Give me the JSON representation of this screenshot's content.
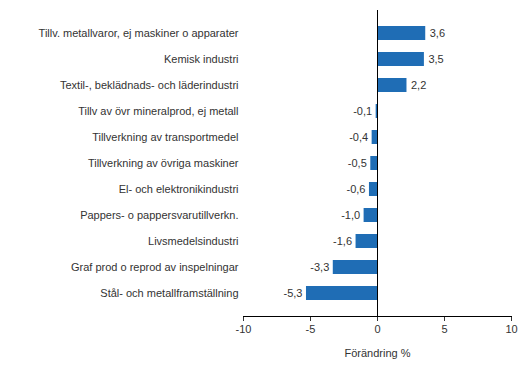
{
  "chart_data": {
    "type": "bar",
    "orientation": "horizontal",
    "categories": [
      "Tillv. metallvaror, ej maskiner o apparater",
      "Kemisk industri",
      "Textil-, beklädnads- och läderindustri",
      "Tillv av övr mineralprod, ej metall",
      "Tillverkning av transportmedel",
      "Tillverkning av övriga maskiner",
      "El- och elektronikindustri",
      "Pappers- o pappersvarutillverkn.",
      "Livsmedelsindustri",
      "Graf prod o reprod av inspelningar",
      "Stål- och metallframställning"
    ],
    "values": [
      3.6,
      3.5,
      2.2,
      -0.1,
      -0.4,
      -0.5,
      -0.6,
      -1.0,
      -1.6,
      -3.3,
      -5.3
    ],
    "value_labels": [
      "3,6",
      "3,5",
      "2,2",
      "-0,1",
      "-0,4",
      "-0,5",
      "-0,6",
      "-1,0",
      "-1,6",
      "-3,3",
      "-5,3"
    ],
    "data_labels": true,
    "color": "#1f6db5",
    "xlabel": "Förändring %",
    "xlim": [
      -10,
      10
    ],
    "xticks": [
      -10,
      -5,
      0,
      5,
      10
    ],
    "grid": false
  }
}
